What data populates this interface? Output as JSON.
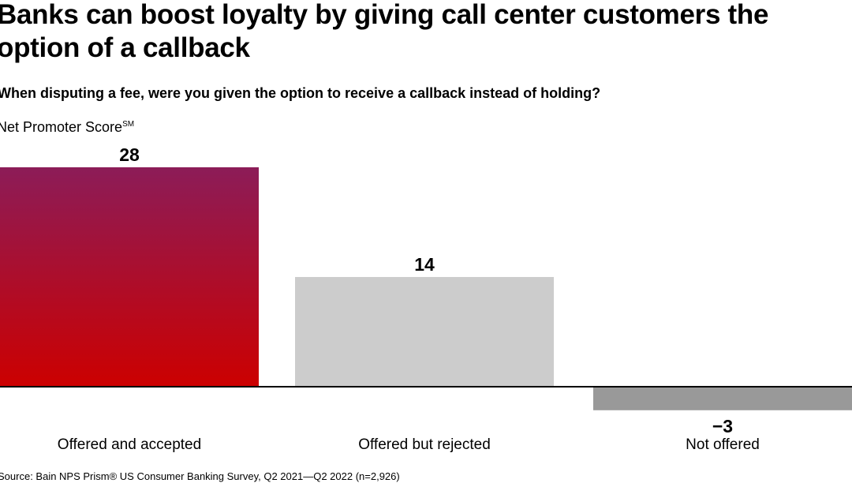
{
  "chart_data": {
    "type": "bar",
    "title": "Banks can boost loyalty by giving call center customers the option of a callback",
    "subtitle": "When disputing a fee, were you given the option to receive a callback instead of holding?",
    "ylabel": "Net Promoter Score",
    "ylabel_superscript": "SM",
    "categories": [
      "Offered and accepted",
      "Offered but rejected",
      "Not offered"
    ],
    "values": [
      28,
      14,
      -3
    ],
    "value_labels": [
      "28",
      "14",
      "−3"
    ],
    "colors": [
      [
        "#8c1c58",
        "#cc0000"
      ],
      [
        "#cccccc"
      ],
      [
        "#999999"
      ]
    ],
    "grid": false,
    "source": "Source: Bain NPS Prism® US Consumer Banking Survey, Q2 2021—Q2 2022 (n=2,926)"
  }
}
